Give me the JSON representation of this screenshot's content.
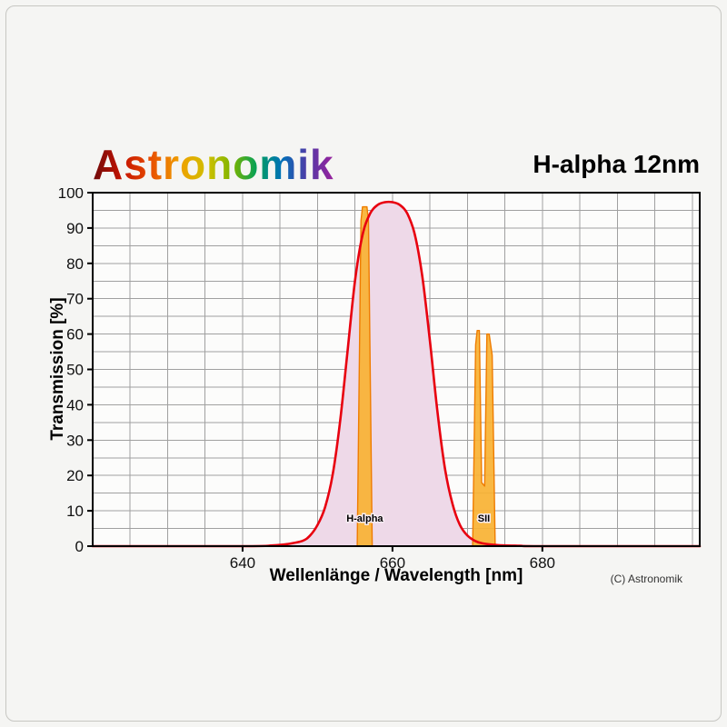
{
  "header": {
    "brand": "Astronomik",
    "title": "H-alpha 12nm"
  },
  "footer": {
    "copyright": "(C) Astronomik"
  },
  "chart_data": {
    "type": "area",
    "title": "H-alpha 12nm",
    "xlabel": "Wellenlänge / Wavelength [nm]",
    "ylabel": "Transmission [%]",
    "xlim": [
      620,
      701
    ],
    "ylim": [
      0,
      100
    ],
    "x_ticks": [
      640,
      660,
      680
    ],
    "y_ticks": [
      0,
      10,
      20,
      30,
      40,
      50,
      60,
      70,
      80,
      90,
      100
    ],
    "grid_step": 5,
    "grid": true,
    "legend": false,
    "series": [
      {
        "name": "filter-transmission-curve",
        "points": [
          [
            620,
            0
          ],
          [
            640,
            0
          ],
          [
            644,
            0.2
          ],
          [
            646,
            0.6
          ],
          [
            648,
            1.5
          ],
          [
            649,
            3
          ],
          [
            650,
            6
          ],
          [
            651,
            11
          ],
          [
            652,
            20
          ],
          [
            653,
            35
          ],
          [
            654,
            55
          ],
          [
            655,
            75
          ],
          [
            656,
            88
          ],
          [
            657,
            94
          ],
          [
            658,
            96.5
          ],
          [
            659,
            97.3
          ],
          [
            660,
            97.3
          ],
          [
            661,
            96.5
          ],
          [
            662,
            94
          ],
          [
            663,
            88
          ],
          [
            664,
            76
          ],
          [
            665,
            58
          ],
          [
            666,
            38
          ],
          [
            667,
            22
          ],
          [
            668,
            12
          ],
          [
            669,
            6
          ],
          [
            670,
            3
          ],
          [
            671,
            1.5
          ],
          [
            672,
            0.8
          ],
          [
            674,
            0.3
          ],
          [
            677,
            0.1
          ],
          [
            680,
            0
          ],
          [
            701,
            0
          ]
        ]
      }
    ],
    "emission_lines": [
      {
        "label": "H-alpha",
        "x": 656.3,
        "peak": 96,
        "label_y": 7,
        "shape": [
          [
            655.3,
            0
          ],
          [
            655.8,
            92
          ],
          [
            656.0,
            96
          ],
          [
            656.6,
            96
          ],
          [
            656.8,
            92
          ],
          [
            657.3,
            0
          ]
        ]
      },
      {
        "label": "SII",
        "x": 672.2,
        "peak": 61,
        "label_y": 7,
        "shape": [
          [
            670.7,
            0
          ],
          [
            671.1,
            57
          ],
          [
            671.3,
            61
          ],
          [
            671.6,
            61
          ],
          [
            671.9,
            18
          ],
          [
            672.3,
            17
          ],
          [
            672.6,
            60
          ],
          [
            672.9,
            60
          ],
          [
            673.3,
            54
          ],
          [
            673.7,
            0
          ]
        ]
      }
    ],
    "colors": {
      "curve": "#e8000f",
      "curve_fill": "#eed9e8",
      "emission_fill": "#f9b233",
      "emission_stroke": "#ef7c00",
      "grid": "#a0a0a0",
      "axis": "#000000",
      "plot_bg": "#fcfcfb",
      "tick_text": "#111111"
    }
  }
}
